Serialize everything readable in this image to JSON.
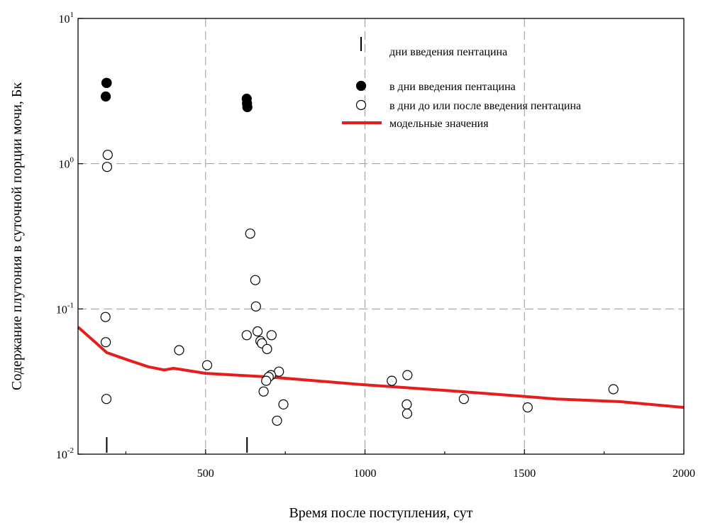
{
  "chart_data": {
    "type": "scatter",
    "xlabel": "Время после поступления, сут",
    "ylabel": "Содержание плутония в суточной порции мочи, Бк",
    "xlim": [
      100,
      2000
    ],
    "ylim": [
      0.01,
      10
    ],
    "y_scale": "log",
    "grid": true,
    "x_ticks": [
      {
        "value": 500,
        "label": "500"
      },
      {
        "value": 1000,
        "label": "1000"
      },
      {
        "value": 1500,
        "label": "1500"
      },
      {
        "value": 2000,
        "label": "2000"
      }
    ],
    "y_ticks": [
      {
        "value": 10,
        "base": "10",
        "exp": "1"
      },
      {
        "value": 1,
        "base": "10",
        "exp": "0"
      },
      {
        "value": 0.1,
        "base": "10",
        "exp": "-1"
      },
      {
        "value": 0.01,
        "base": "10",
        "exp": "-2"
      }
    ],
    "legend": {
      "placement": "top-right",
      "entries": [
        {
          "key": "days",
          "label": "дни введения пентацина",
          "marker": "tick"
        },
        {
          "key": "filled",
          "label": "в дни введения пентацина",
          "marker": "filled-circle"
        },
        {
          "key": "open",
          "label": "в дни до или после введения пентацина",
          "marker": "open-circle"
        },
        {
          "key": "model",
          "label": "модельные значения",
          "marker": "line",
          "color": "#e41e1e"
        }
      ]
    },
    "series": [
      {
        "key": "open",
        "points": [
          [
            189,
            3.6
          ],
          [
            193,
            1.15
          ],
          [
            191,
            0.95
          ],
          [
            186,
            0.088
          ],
          [
            187,
            0.059
          ],
          [
            189,
            0.024
          ],
          [
            640,
            0.33
          ],
          [
            656,
            0.158
          ],
          [
            658,
            0.104
          ],
          [
            629,
            0.066
          ],
          [
            663,
            0.07
          ],
          [
            672,
            0.06
          ],
          [
            677,
            0.058
          ],
          [
            707,
            0.066
          ],
          [
            693,
            0.053
          ],
          [
            730,
            0.037
          ],
          [
            705,
            0.035
          ],
          [
            698,
            0.034
          ],
          [
            690,
            0.032
          ],
          [
            682,
            0.027
          ],
          [
            744,
            0.022
          ],
          [
            724,
            0.017
          ],
          [
            417,
            0.052
          ],
          [
            505,
            0.041
          ],
          [
            1084,
            0.032
          ],
          [
            1133,
            0.035
          ],
          [
            1131,
            0.022
          ],
          [
            1132,
            0.019
          ],
          [
            1310,
            0.024
          ],
          [
            1510,
            0.021
          ],
          [
            1779,
            0.028
          ]
        ]
      },
      {
        "key": "filled",
        "points": [
          [
            190,
            3.6
          ],
          [
            187,
            2.9
          ],
          [
            629,
            2.8
          ],
          [
            630,
            2.6
          ],
          [
            631,
            2.45
          ]
        ]
      },
      {
        "key": "model",
        "line": [
          [
            100,
            0.075
          ],
          [
            150,
            0.06
          ],
          [
            190,
            0.05
          ],
          [
            250,
            0.045
          ],
          [
            320,
            0.04
          ],
          [
            370,
            0.038
          ],
          [
            400,
            0.039
          ],
          [
            500,
            0.036
          ],
          [
            700,
            0.034
          ],
          [
            1000,
            0.03
          ],
          [
            1300,
            0.027
          ],
          [
            1600,
            0.024
          ],
          [
            1800,
            0.023
          ],
          [
            2000,
            0.021
          ]
        ]
      },
      {
        "key": "days",
        "x": [
          190,
          630
        ]
      }
    ]
  }
}
